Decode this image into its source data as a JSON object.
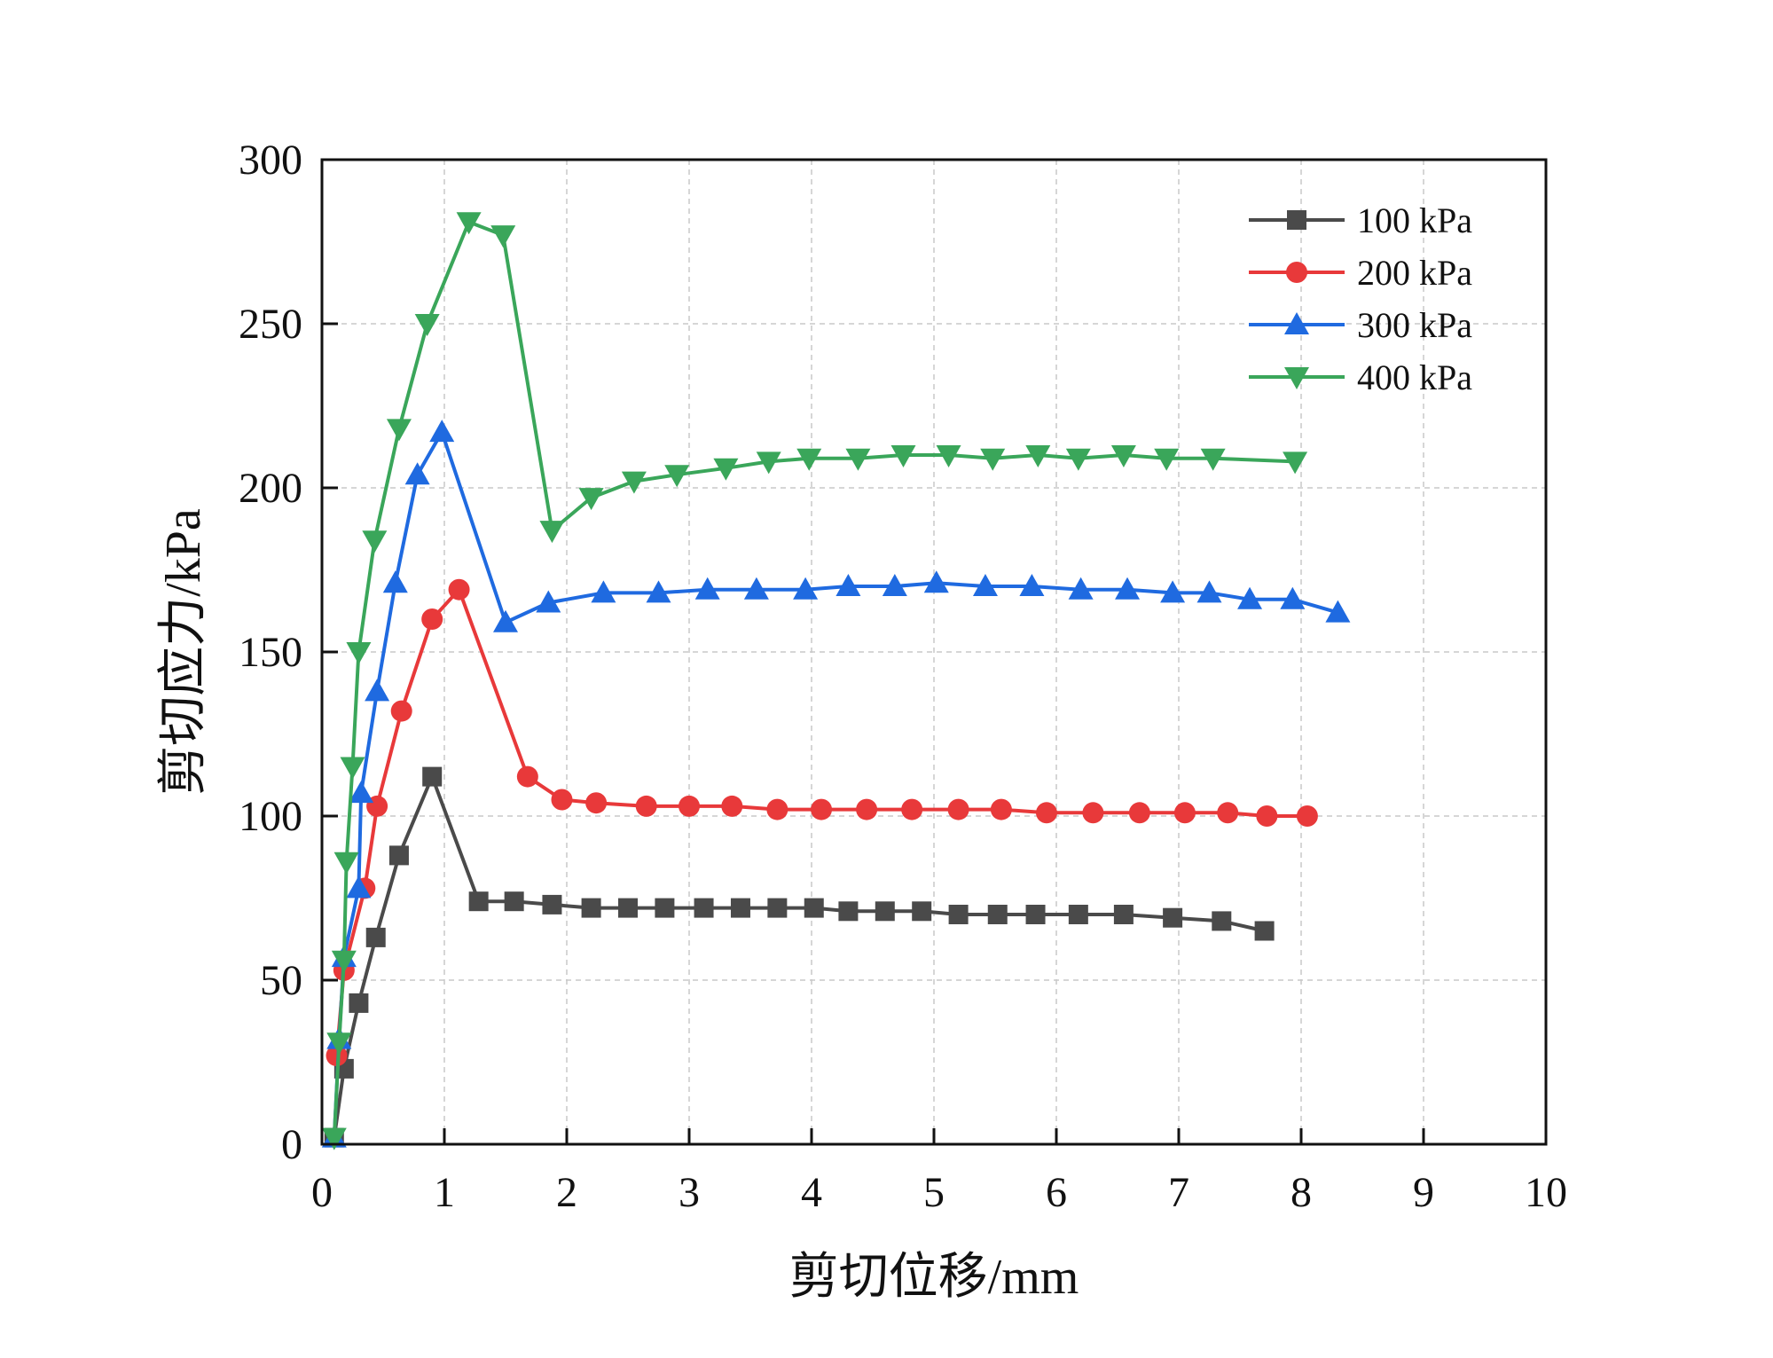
{
  "chart_data": {
    "type": "line",
    "title": "",
    "xlabel": "剪切位移/mm",
    "ylabel": "剪切应力/kPa",
    "xlim": [
      0,
      10
    ],
    "ylim": [
      0,
      300
    ],
    "xticks": [
      0,
      1,
      2,
      3,
      4,
      5,
      6,
      7,
      8,
      9,
      10
    ],
    "yticks": [
      0,
      50,
      100,
      150,
      200,
      250,
      300
    ],
    "grid": true,
    "legend_position": "top-right",
    "series": [
      {
        "name": "100 kPa",
        "color": "#4a4a4a",
        "marker": "square",
        "x": [
          0.1,
          0.18,
          0.3,
          0.44,
          0.63,
          0.9,
          1.28,
          1.57,
          1.88,
          2.2,
          2.5,
          2.8,
          3.12,
          3.42,
          3.72,
          4.02,
          4.3,
          4.6,
          4.9,
          5.2,
          5.52,
          5.83,
          6.18,
          6.55,
          6.95,
          7.35,
          7.7
        ],
        "y": [
          2,
          23,
          43,
          63,
          88,
          112,
          74,
          74,
          73,
          72,
          72,
          72,
          72,
          72,
          72,
          72,
          71,
          71,
          71,
          70,
          70,
          70,
          70,
          70,
          69,
          68,
          65
        ]
      },
      {
        "name": "200 kPa",
        "color": "#e8393a",
        "marker": "circle",
        "x": [
          0.12,
          0.18,
          0.35,
          0.45,
          0.65,
          0.9,
          1.12,
          1.68,
          1.96,
          2.24,
          2.65,
          3.0,
          3.35,
          3.72,
          4.08,
          4.45,
          4.82,
          5.2,
          5.55,
          5.92,
          6.3,
          6.68,
          7.05,
          7.4,
          7.72,
          8.05
        ],
        "y": [
          27,
          53,
          78,
          103,
          132,
          160,
          169,
          112,
          105,
          104,
          103,
          103,
          103,
          102,
          102,
          102,
          102,
          102,
          102,
          101,
          101,
          101,
          101,
          101,
          100,
          100
        ]
      },
      {
        "name": "300 kPa",
        "color": "#1f6ae0",
        "marker": "triangle-up",
        "x": [
          0.1,
          0.14,
          0.18,
          0.3,
          0.32,
          0.45,
          0.6,
          0.78,
          0.98,
          1.5,
          1.85,
          2.3,
          2.75,
          3.15,
          3.55,
          3.95,
          4.3,
          4.68,
          5.02,
          5.42,
          5.8,
          6.2,
          6.58,
          6.95,
          7.25,
          7.58,
          7.93,
          8.3
        ],
        "y": [
          2,
          32,
          57,
          78,
          107,
          138,
          171,
          204,
          217,
          159,
          165,
          168,
          168,
          169,
          169,
          169,
          170,
          170,
          171,
          170,
          170,
          169,
          169,
          168,
          168,
          166,
          166,
          162
        ]
      },
      {
        "name": "400 kPa",
        "color": "#3aa65a",
        "marker": "triangle-down",
        "x": [
          0.1,
          0.14,
          0.18,
          0.2,
          0.25,
          0.3,
          0.43,
          0.63,
          0.86,
          1.2,
          1.48,
          1.88,
          2.2,
          2.55,
          2.9,
          3.3,
          3.65,
          3.98,
          4.38,
          4.75,
          5.12,
          5.48,
          5.85,
          6.18,
          6.55,
          6.9,
          7.28,
          7.95
        ],
        "y": [
          2,
          31,
          56,
          86,
          115,
          150,
          184,
          218,
          250,
          281,
          277,
          187,
          197,
          202,
          204,
          206,
          208,
          209,
          209,
          210,
          210,
          209,
          210,
          209,
          210,
          209,
          209,
          208
        ]
      }
    ]
  }
}
